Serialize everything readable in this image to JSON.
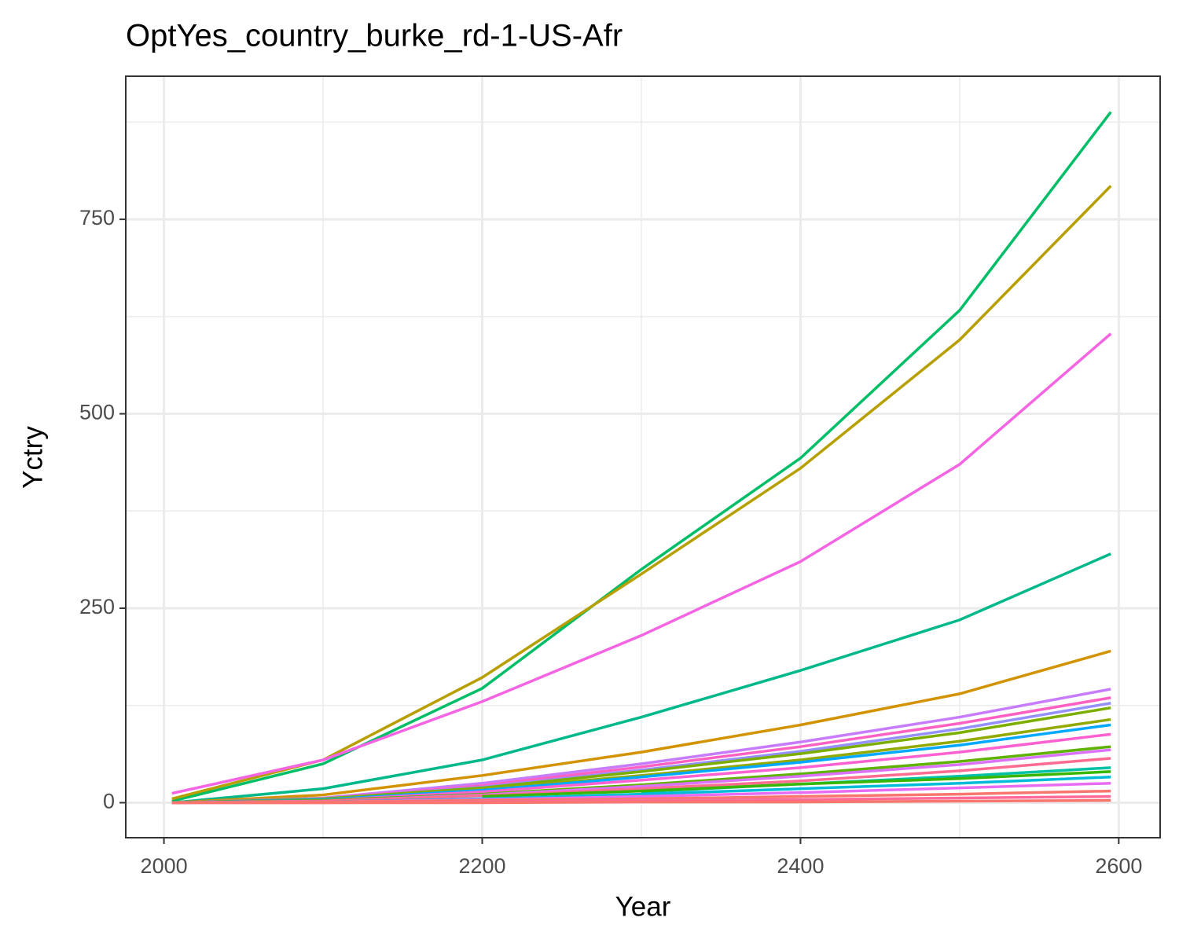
{
  "chart_data": {
    "type": "line",
    "title": "OptYes_country_burke_rd-1-US-Afr",
    "x_label": "Year",
    "y_label": "Yctry",
    "x": [
      2005,
      2100,
      2200,
      2300,
      2400,
      2500,
      2595
    ],
    "xlim": [
      1976,
      2626
    ],
    "xticks": [
      2000,
      2200,
      2400,
      2600
    ],
    "minor_xticks": [
      2100,
      2300,
      2500
    ],
    "ylim": [
      -45,
      934
    ],
    "yticks": [
      0,
      250,
      500,
      750
    ],
    "minor_yticks": [
      125,
      375,
      625,
      875
    ],
    "grid": true,
    "series": [
      {
        "color": "#00be67",
        "values": [
          2,
          50,
          147,
          300,
          443,
          633,
          888
        ]
      },
      {
        "color": "#b79f00",
        "values": [
          5,
          55,
          161,
          294,
          430,
          595,
          793
        ]
      },
      {
        "color": "#f564e3",
        "values": [
          12,
          55,
          130,
          215,
          310,
          435,
          603
        ]
      },
      {
        "color": "#00b88a",
        "values": [
          0,
          18,
          55,
          110,
          170,
          235,
          320
        ]
      },
      {
        "color": "#d39200",
        "values": [
          0,
          10,
          35,
          65,
          100,
          140,
          195
        ]
      },
      {
        "color": "#c77cff",
        "values": [
          0,
          6,
          25,
          50,
          78,
          110,
          146
        ]
      },
      {
        "color": "#ff61c3",
        "values": [
          0,
          5,
          22,
          46,
          72,
          102,
          135
        ]
      },
      {
        "color": "#9590ff",
        "values": [
          0,
          5,
          20,
          42,
          66,
          95,
          128
        ]
      },
      {
        "color": "#7cae00",
        "values": [
          0,
          5,
          19,
          40,
          63,
          90,
          122
        ]
      },
      {
        "color": "#93aa00",
        "values": [
          0,
          4,
          17,
          35,
          55,
          79,
          107
        ]
      },
      {
        "color": "#00a9ff",
        "values": [
          0,
          4,
          16,
          33,
          52,
          74,
          100
        ]
      },
      {
        "color": "#fd61d1",
        "values": [
          0,
          3,
          14,
          29,
          45,
          65,
          88
        ]
      },
      {
        "color": "#5eb300",
        "values": [
          0,
          3,
          11,
          23,
          37,
          53,
          72
        ]
      },
      {
        "color": "#db72fb",
        "values": [
          0,
          2,
          10,
          21,
          34,
          49,
          68
        ]
      },
      {
        "color": "#ff6c91",
        "values": [
          0,
          2,
          9,
          18,
          28,
          41,
          57
        ]
      },
      {
        "color": "#00c1a3",
        "values": [
          null,
          null,
          null,
          14,
          24,
          34,
          45
        ]
      },
      {
        "color": "#39b600",
        "values": [
          null,
          null,
          8,
          15,
          24,
          31,
          40
        ]
      },
      {
        "color": "#00bcd8",
        "values": [
          0,
          1,
          5,
          11,
          18,
          25,
          33
        ]
      },
      {
        "color": "#e76bf3",
        "values": [
          0,
          1,
          4,
          8,
          13,
          19,
          25
        ]
      },
      {
        "color": "#f8766d",
        "values": [
          0,
          1,
          3,
          5,
          8,
          11,
          15
        ]
      },
      {
        "color": "#ff6a98",
        "values": [
          0,
          0,
          1,
          3,
          4,
          6,
          8
        ]
      },
      {
        "color": "#f8766d",
        "values": [
          0,
          0,
          0,
          1,
          1,
          2,
          3
        ]
      }
    ]
  }
}
